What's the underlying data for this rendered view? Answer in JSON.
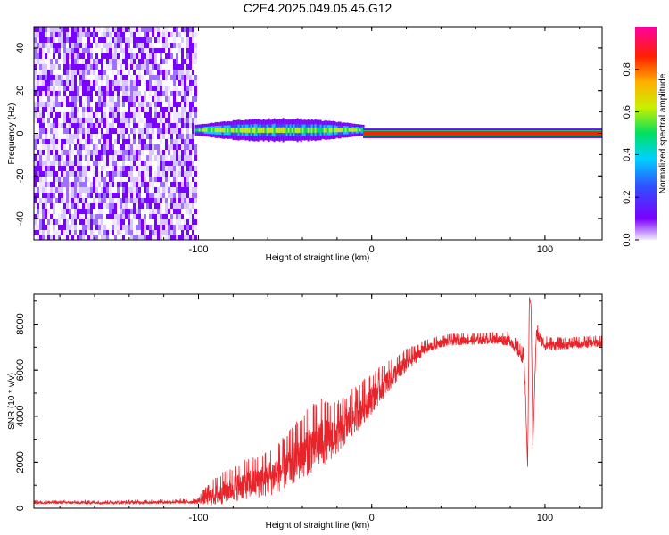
{
  "title": "C2E4.2025.049.05.45.G12",
  "colors": {
    "signal": "#e8242b",
    "noise": "#6a00ff",
    "colormap": [
      "#e8e0ff",
      "#7a00ff",
      "#3050ff",
      "#00d0ff",
      "#00e060",
      "#c8f000",
      "#ffb000",
      "#ff2000",
      "#ff00a0"
    ]
  },
  "chart_data": [
    {
      "type": "heatmap",
      "xlabel": "Height of straight line (km)",
      "ylabel": "Frequency (Hz)",
      "xlim": [
        -195,
        133
      ],
      "ylim": [
        -50,
        50
      ],
      "xticks": [
        -100,
        0,
        100
      ],
      "yticks": [
        -40,
        -20,
        0,
        20,
        40
      ],
      "colorbar": {
        "label": "Normalized spectral amplitude",
        "range": [
          0,
          1
        ],
        "ticks": [
          "0.0",
          "0.2",
          "0.4",
          "0.6",
          "0.8"
        ]
      },
      "regions": [
        {
          "description": "noise",
          "x": [
            -195,
            -102
          ],
          "y": [
            -50,
            50
          ],
          "amplitude": 0.15
        },
        {
          "description": "spread signal",
          "x": [
            -102,
            -5
          ],
          "y": [
            -8,
            12
          ],
          "amplitude": 0.4
        },
        {
          "description": "carrier line",
          "x": [
            -5,
            133
          ],
          "y": [
            -1,
            1
          ],
          "amplitude": 1.0
        }
      ]
    },
    {
      "type": "line",
      "xlabel": "Height of straight line (km)",
      "ylabel": "SNR (10 * v/v)",
      "xlim": [
        -195,
        133
      ],
      "ylim": [
        0,
        9300
      ],
      "xticks": [
        -100,
        0,
        100
      ],
      "yticks": [
        0,
        2000,
        4000,
        6000,
        8000
      ],
      "series": [
        {
          "x": [
            -195,
            -150,
            -102,
            -90,
            -80,
            -70,
            -60,
            -50,
            -40,
            -30,
            -20,
            -10,
            0,
            10,
            20,
            30,
            40,
            50,
            60,
            70,
            80,
            88,
            90,
            91,
            92,
            93,
            95,
            100,
            110,
            120,
            133
          ],
          "y": [
            250,
            250,
            280,
            600,
            900,
            1100,
            1300,
            1700,
            2400,
            2900,
            3200,
            4000,
            4800,
            5600,
            6300,
            6900,
            7200,
            7300,
            7300,
            7350,
            7300,
            6500,
            1800,
            9200,
            8800,
            2600,
            7600,
            7100,
            7100,
            7150,
            7200
          ],
          "noise": [
            60,
            60,
            80,
            500,
            600,
            700,
            800,
            900,
            1100,
            1200,
            900,
            800,
            700,
            500,
            400,
            250,
            200,
            200,
            200,
            200,
            250,
            300,
            0,
            0,
            0,
            0,
            300,
            250,
            200,
            200,
            200
          ]
        }
      ]
    }
  ]
}
